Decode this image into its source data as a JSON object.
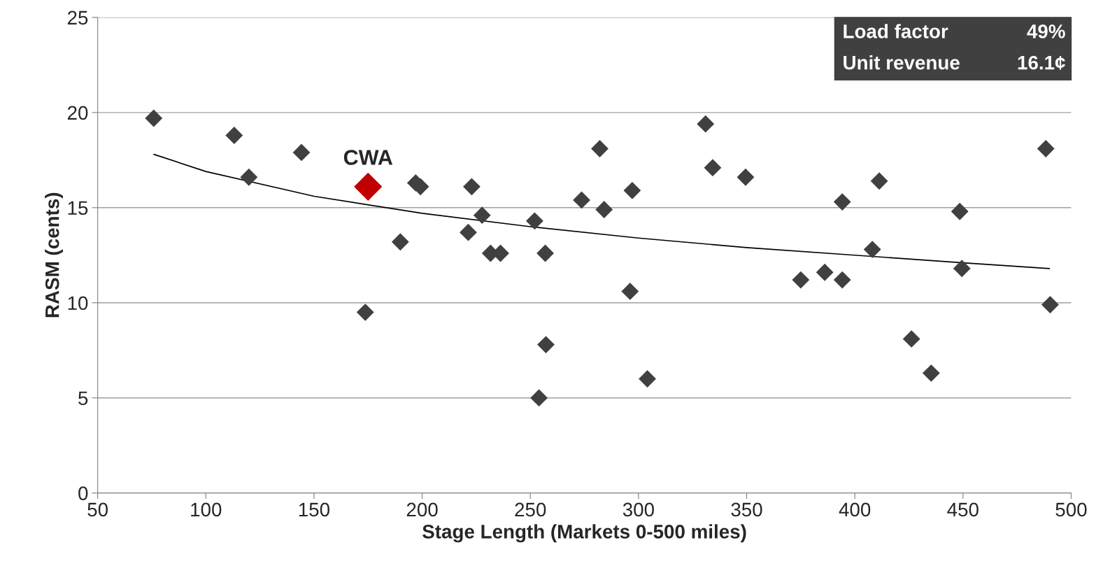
{
  "chart_data": {
    "type": "scatter",
    "xlabel": "Stage Length (Markets 0-500 miles)",
    "ylabel": "RASM (cents)",
    "xlim": [
      50,
      500
    ],
    "xticks": [
      50,
      100,
      150,
      200,
      250,
      300,
      350,
      400,
      450,
      500
    ],
    "ylim": [
      0,
      25
    ],
    "yticks": [
      0,
      5,
      10,
      15,
      20,
      25
    ],
    "grid": "y",
    "marker": "diamond",
    "legend": false,
    "series": [
      {
        "color": "#404040",
        "x": [
          75.9,
          113.1,
          119.9,
          144.2,
          173.7,
          189.9,
          197.0,
          199.2,
          221.3,
          222.9,
          227.7,
          231.6,
          236.2,
          252.0,
          254.0,
          256.9,
          257.2,
          273.7,
          282.1,
          284.1,
          296.1,
          297.1,
          304.1,
          331.0,
          334.3,
          349.5,
          375.0,
          386.1,
          394.2,
          394.2,
          408.1,
          411.3,
          426.2,
          435.3,
          448.5,
          449.5,
          488.3,
          490.3
        ],
        "values": [
          19.7,
          18.8,
          16.6,
          17.9,
          9.5,
          13.2,
          16.3,
          16.1,
          13.7,
          16.1,
          14.6,
          12.6,
          12.6,
          14.3,
          5.0,
          12.6,
          7.8,
          15.4,
          18.1,
          14.9,
          10.6,
          15.9,
          6.0,
          19.4,
          17.1,
          16.6,
          11.2,
          11.6,
          11.2,
          15.3,
          12.8,
          16.4,
          8.1,
          6.3,
          14.8,
          11.8,
          18.1,
          9.9
        ]
      },
      {
        "color": "#c00000",
        "x": [
          175.0
        ],
        "values": [
          16.1
        ]
      },
      {
        "type": "line",
        "color": "#000000",
        "marker": "none",
        "x": [
          76,
          100,
          150,
          200,
          250,
          300,
          350,
          400,
          450,
          490
        ],
        "values": [
          17.8,
          16.9,
          15.6,
          14.7,
          14.0,
          13.4,
          12.9,
          12.5,
          12.1,
          11.8
        ]
      }
    ],
    "annotations": [
      {
        "text": "CWA",
        "x": 175.0,
        "y": 16.1
      },
      "Load factor",
      "49%",
      "Unit revenue",
      "16.1¢"
    ]
  }
}
